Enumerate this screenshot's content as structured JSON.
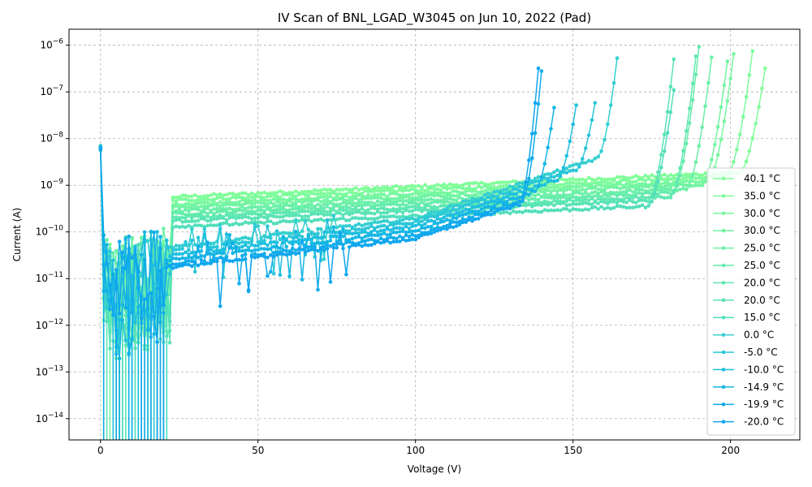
{
  "chart_data": {
    "type": "line",
    "title": "IV Scan of BNL_LGAD_W3045 on Jun 10, 2022 (Pad)",
    "xlabel": "Voltage (V)",
    "ylabel": "Current (A)",
    "xlim": [
      -10,
      222
    ],
    "ylim": [
      3.5e-15,
      2.2e-06
    ],
    "yscale": "log",
    "grid": true,
    "legend_position": "lower-right",
    "x_ticks": [
      {
        "value": 0,
        "label": "0"
      },
      {
        "value": 50,
        "label": "50"
      },
      {
        "value": 100,
        "label": "100"
      },
      {
        "value": 150,
        "label": "150"
      },
      {
        "value": 200,
        "label": "200"
      }
    ],
    "y_ticks": [
      {
        "exp": -14,
        "base": "10",
        "sup": "−14"
      },
      {
        "exp": -13,
        "base": "10",
        "sup": "−13"
      },
      {
        "exp": -12,
        "base": "10",
        "sup": "−12"
      },
      {
        "exp": -11,
        "base": "10",
        "sup": "−11"
      },
      {
        "exp": -10,
        "base": "10",
        "sup": "−10"
      },
      {
        "exp": -9,
        "base": "10",
        "sup": "−9"
      },
      {
        "exp": -8,
        "base": "10",
        "sup": "−8"
      },
      {
        "exp": -7,
        "base": "10",
        "sup": "−7"
      },
      {
        "exp": -6,
        "base": "10",
        "sup": "−6"
      }
    ],
    "series": [
      {
        "name": "40.1$^\\circ$C",
        "label": "40.1 °C",
        "color": "#80ff99",
        "vmax": 211,
        "plateau": 5.6e-10,
        "breakdown": 3.2e-07
      },
      {
        "name": "35.0 °C",
        "label": "35.0 °C",
        "color": "#7dfc9b",
        "vmax": 207,
        "plateau": 4.7e-10,
        "breakdown": 7.5e-07
      },
      {
        "name": "30.0 °C",
        "label": "30.0 °C",
        "color": "#77f89f",
        "vmax": 201,
        "plateau": 3.9e-10,
        "breakdown": 6.5e-07
      },
      {
        "name": "30.0 °C",
        "label": "30.0 °C",
        "color": "#72f4a3",
        "vmax": 199,
        "plateau": 3.4e-10,
        "breakdown": 4.5e-07
      },
      {
        "name": "25.0 °C",
        "label": "25.0 °C",
        "color": "#6cf0a7",
        "vmax": 194,
        "plateau": 2.8e-10,
        "breakdown": 5.5e-07
      },
      {
        "name": "25.0 °C",
        "label": "25.0 °C",
        "color": "#66ecab",
        "vmax": 190,
        "plateau": 2.4e-10,
        "breakdown": 9.3e-07
      },
      {
        "name": "20.0 °C",
        "label": "20.0 °C",
        "color": "#5fe8b0",
        "vmax": 189,
        "plateau": 2e-10,
        "breakdown": 5.8e-07
      },
      {
        "name": "20.0 °C",
        "label": "20.0 °C",
        "color": "#59e3b5",
        "vmax": 182,
        "plateau": 1.7e-10,
        "breakdown": 5e-07
      },
      {
        "name": "15.0 °C",
        "label": "15.0 °C",
        "color": "#52debb",
        "vmax": 182,
        "plateau": 1.3e-10,
        "breakdown": 1.1e-07
      },
      {
        "name": "0.0 °C",
        "label": "0.0 °C",
        "color": "#34cfd0",
        "vmax": 164,
        "plateau": 4.6e-11,
        "breakdown": 5.3e-07
      },
      {
        "name": "-5.0 °C",
        "label": "-5.0 °C",
        "color": "#2ac7d8",
        "vmax": 157,
        "plateau": 3.8e-11,
        "breakdown": 5.8e-08
      },
      {
        "name": "-10.0 °C",
        "label": "-10.0 °C",
        "color": "#1ebfdf",
        "vmax": 151,
        "plateau": 3.1e-11,
        "breakdown": 5.2e-08
      },
      {
        "name": "-14.9 °C",
        "label": "-14.9 °C",
        "color": "#14b6e4",
        "vmax": 144,
        "plateau": 2.5e-11,
        "breakdown": 4.6e-08
      },
      {
        "name": "-19.9 °C",
        "label": "-19.9 °C",
        "color": "#11acea",
        "vmax": 140,
        "plateau": 2e-11,
        "breakdown": 2.8e-07
      },
      {
        "name": "-20.0 °C",
        "label": "-20.0 °C",
        "color": "#10a6ee",
        "vmax": 139,
        "plateau": 1.7e-11,
        "breakdown": 3.2e-07
      }
    ]
  }
}
